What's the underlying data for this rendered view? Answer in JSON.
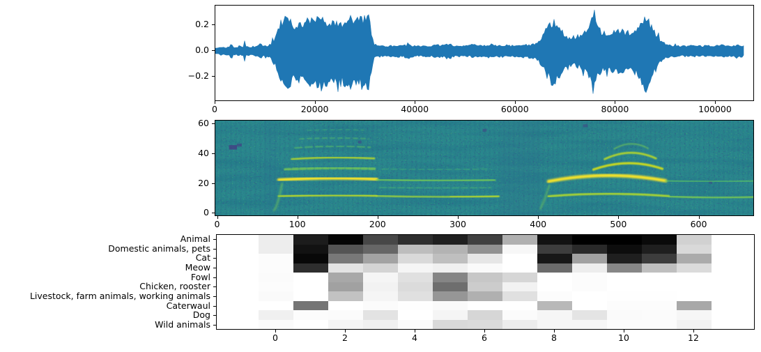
{
  "figure": {
    "background": "#ffffff",
    "text_color": "#000000",
    "spine_color": "#000000"
  },
  "chart_data": [
    {
      "id": "waveform",
      "type": "line",
      "title": "",
      "xlabel": "",
      "ylabel": "",
      "series_color": "#1f77b4",
      "xlim": [
        0,
        107800
      ],
      "ylim": [
        -0.39,
        0.35
      ],
      "xticks": [
        0,
        20000,
        40000,
        60000,
        80000,
        100000
      ],
      "xtick_labels": [
        "0",
        "20000",
        "40000",
        "60000",
        "80000",
        "100000"
      ],
      "yticks": [
        0.2,
        0.0,
        -0.2
      ],
      "ytick_labels": [
        "0.2",
        "0.0",
        "−0.2"
      ],
      "n_samples": 105700,
      "envelope": [
        [
          0,
          0.022
        ],
        [
          1500,
          0.03
        ],
        [
          2800,
          0.032
        ],
        [
          3200,
          0.075
        ],
        [
          3600,
          0.032
        ],
        [
          4800,
          0.036
        ],
        [
          5600,
          0.04
        ],
        [
          5850,
          0.1
        ],
        [
          6100,
          0.04
        ],
        [
          7000,
          0.036
        ],
        [
          8000,
          0.04
        ],
        [
          9300,
          0.055
        ],
        [
          9700,
          0.04
        ],
        [
          10500,
          0.046
        ],
        [
          11200,
          0.06
        ],
        [
          11500,
          0.12
        ],
        [
          11800,
          0.09
        ],
        [
          12400,
          0.17
        ],
        [
          13000,
          0.24
        ],
        [
          13800,
          0.275
        ],
        [
          14500,
          0.29
        ],
        [
          15200,
          0.26
        ],
        [
          16000,
          0.215
        ],
        [
          16800,
          0.235
        ],
        [
          17600,
          0.225
        ],
        [
          18400,
          0.245
        ],
        [
          19200,
          0.27
        ],
        [
          20000,
          0.3
        ],
        [
          20800,
          0.31
        ],
        [
          21600,
          0.285
        ],
        [
          22400,
          0.255
        ],
        [
          23200,
          0.26
        ],
        [
          24000,
          0.245
        ],
        [
          24800,
          0.265
        ],
        [
          25600,
          0.255
        ],
        [
          26400,
          0.27
        ],
        [
          27200,
          0.285
        ],
        [
          28000,
          0.265
        ],
        [
          28800,
          0.27
        ],
        [
          29600,
          0.29
        ],
        [
          30300,
          0.315
        ],
        [
          30800,
          0.29
        ],
        [
          31200,
          0.17
        ],
        [
          31600,
          0.065
        ],
        [
          32500,
          0.048
        ],
        [
          34000,
          0.042
        ],
        [
          35500,
          0.045
        ],
        [
          37000,
          0.048
        ],
        [
          38300,
          0.05
        ],
        [
          38550,
          0.09
        ],
        [
          38800,
          0.05
        ],
        [
          40000,
          0.045
        ],
        [
          41500,
          0.042
        ],
        [
          43000,
          0.045
        ],
        [
          44500,
          0.05
        ],
        [
          46000,
          0.052
        ],
        [
          47000,
          0.06
        ],
        [
          47600,
          0.048
        ],
        [
          49000,
          0.046
        ],
        [
          50500,
          0.044
        ],
        [
          52000,
          0.052
        ],
        [
          53500,
          0.048
        ],
        [
          55000,
          0.056
        ],
        [
          56500,
          0.046
        ],
        [
          58000,
          0.05
        ],
        [
          59500,
          0.046
        ],
        [
          61000,
          0.05
        ],
        [
          62500,
          0.054
        ],
        [
          63800,
          0.06
        ],
        [
          64800,
          0.09
        ],
        [
          65600,
          0.15
        ],
        [
          66400,
          0.21
        ],
        [
          67200,
          0.25
        ],
        [
          67700,
          0.26
        ],
        [
          68300,
          0.23
        ],
        [
          69000,
          0.19
        ],
        [
          69800,
          0.14
        ],
        [
          70600,
          0.115
        ],
        [
          71600,
          0.12
        ],
        [
          72600,
          0.13
        ],
        [
          73600,
          0.15
        ],
        [
          74400,
          0.18
        ],
        [
          75100,
          0.25
        ],
        [
          75500,
          0.31
        ],
        [
          76000,
          0.27
        ],
        [
          76600,
          0.19
        ],
        [
          77400,
          0.16
        ],
        [
          78200,
          0.155
        ],
        [
          79000,
          0.17
        ],
        [
          79800,
          0.16
        ],
        [
          80600,
          0.18
        ],
        [
          81400,
          0.17
        ],
        [
          82200,
          0.16
        ],
        [
          83000,
          0.167
        ],
        [
          83800,
          0.175
        ],
        [
          84600,
          0.2
        ],
        [
          85300,
          0.25
        ],
        [
          85900,
          0.31
        ],
        [
          86400,
          0.285
        ],
        [
          87000,
          0.24
        ],
        [
          87600,
          0.19
        ],
        [
          88300,
          0.13
        ],
        [
          89000,
          0.09
        ],
        [
          90000,
          0.058
        ],
        [
          91500,
          0.046
        ],
        [
          93000,
          0.042
        ],
        [
          95000,
          0.046
        ],
        [
          97000,
          0.043
        ],
        [
          99000,
          0.046
        ],
        [
          101000,
          0.05
        ],
        [
          103000,
          0.046
        ],
        [
          105000,
          0.05
        ],
        [
          105700,
          0.042
        ]
      ]
    },
    {
      "id": "spectrogram",
      "type": "heatmap",
      "colormap": "viridis",
      "xlim": [
        0,
        669
      ],
      "ylim": [
        -2.3,
        62.5
      ],
      "xticks": [
        0,
        100,
        200,
        300,
        400,
        500,
        600
      ],
      "xtick_labels": [
        "0",
        "100",
        "200",
        "300",
        "400",
        "500",
        "600"
      ],
      "yticks": [
        0,
        20,
        40,
        60
      ],
      "ytick_labels": [
        "0",
        "20",
        "40",
        "60"
      ],
      "background": "#2a878d",
      "bands": [
        {
          "x": [
            76,
            198
          ],
          "y": [
            22.5,
            23.8,
            23
          ],
          "c": "#fde725",
          "w": 4.6,
          "o": 1,
          "b": 2
        },
        {
          "x": [
            76,
            198
          ],
          "y": [
            11.5,
            12.2,
            11.8
          ],
          "c": "#c2df23",
          "w": 3,
          "o": 0.9,
          "b": 1
        },
        {
          "x": [
            84,
            196
          ],
          "y": [
            29.5,
            30.6,
            30
          ],
          "c": "#86d549",
          "w": 4,
          "o": 0.7,
          "b": 1,
          "d": "7 4"
        },
        {
          "x": [
            92,
            195
          ],
          "y": [
            36.5,
            37.6,
            37
          ],
          "c": "#c2df23",
          "w": 2.6,
          "o": 0.85,
          "b": 1
        },
        {
          "x": [
            96,
            190
          ],
          "y": [
            44,
            45.2,
            44.5
          ],
          "c": "#5ec962",
          "w": 2.2,
          "o": 0.6,
          "b": 1,
          "d": "10 5"
        },
        {
          "x": [
            102,
            188
          ],
          "y": [
            50,
            50.8,
            50.2
          ],
          "c": "#5ec962",
          "w": 2,
          "o": 0.5,
          "b": 1,
          "d": "6 5"
        },
        {
          "x": [
            112,
            182
          ],
          "y": [
            55.8,
            56.5,
            56
          ],
          "c": "#4ac16d",
          "w": 1.8,
          "o": 0.4,
          "b": 1,
          "d": "5 6"
        },
        {
          "x": [
            198,
            345
          ],
          "y": [
            22.8,
            22,
            22.5
          ],
          "c": "#7ad151",
          "w": 3,
          "o": 0.75,
          "b": 1
        },
        {
          "x": [
            198,
            350
          ],
          "y": [
            11.8,
            11,
            11.5
          ],
          "c": "#a8db34",
          "w": 2.6,
          "o": 0.85,
          "b": 1
        },
        {
          "x": [
            290,
            350
          ],
          "y": [
            11.4,
            11.2,
            11.4
          ],
          "c": "#d8e219",
          "w": 2.6,
          "o": 0.8,
          "b": 1
        },
        {
          "x": [
            202,
            340
          ],
          "y": [
            17.5,
            17,
            17.4
          ],
          "c": "#52c569",
          "w": 2.2,
          "o": 0.45,
          "b": 1,
          "d": "9 4"
        },
        {
          "x": [
            205,
            335
          ],
          "y": [
            30,
            29.4,
            30
          ],
          "c": "#4ac16d",
          "w": 2,
          "o": 0.4,
          "b": 1,
          "d": "8 5"
        },
        {
          "x": [
            412,
            558
          ],
          "y": [
            21.5,
            25.5,
            22
          ],
          "c": "#fde725",
          "w": 4.6,
          "o": 1,
          "b": 2
        },
        {
          "x": [
            412,
            562
          ],
          "y": [
            11.5,
            13.2,
            11.6
          ],
          "c": "#b5de2b",
          "w": 3,
          "o": 0.9,
          "b": 1
        },
        {
          "x": [
            468,
            554
          ],
          "y": [
            29.5,
            33.8,
            30
          ],
          "c": "#d8e219",
          "w": 3.2,
          "o": 0.9,
          "b": 1
        },
        {
          "x": [
            482,
            546
          ],
          "y": [
            36.5,
            40.8,
            37
          ],
          "c": "#c2df23",
          "w": 2.8,
          "o": 0.85,
          "b": 1
        },
        {
          "x": [
            494,
            536
          ],
          "y": [
            43.5,
            46.8,
            43.8
          ],
          "c": "#7ad151",
          "w": 2.2,
          "o": 0.55,
          "b": 1
        },
        {
          "x": [
            558,
            669
          ],
          "y": [
            22,
            21.4,
            21.8
          ],
          "c": "#5ec962",
          "w": 2.6,
          "o": 0.65,
          "b": 1
        },
        {
          "x": [
            562,
            669
          ],
          "y": [
            11.4,
            10.6,
            11
          ],
          "c": "#86d549",
          "w": 2.6,
          "o": 0.8,
          "b": 1
        },
        {
          "x": [
            70,
            80
          ],
          "y": [
            2,
            8,
            20
          ],
          "c": "#7ad151",
          "w": 2.4,
          "o": 0.6,
          "b": 2
        },
        {
          "x": [
            402,
            413
          ],
          "y": [
            3,
            10,
            19
          ],
          "c": "#7ad151",
          "w": 2.4,
          "o": 0.55,
          "b": 2
        }
      ],
      "streaks": [
        {
          "x": 193,
          "y": [
            0,
            60
          ],
          "c": "#8ed645",
          "w": 1.4,
          "o": 0.3
        },
        {
          "x": 510,
          "y": [
            12,
            62
          ],
          "c": "#a8db34",
          "w": 1.6,
          "o": 0.3
        },
        {
          "x": 477,
          "y": [
            26,
            50
          ],
          "c": "#6ece58",
          "w": 1.2,
          "o": 0.3
        },
        {
          "x": 88,
          "y": [
            0,
            20
          ],
          "c": "#6ece58",
          "w": 1.3,
          "o": 0.35
        },
        {
          "x": 411,
          "y": [
            0,
            20
          ],
          "c": "#6ece58",
          "w": 1.3,
          "o": 0.3
        }
      ],
      "patches": [
        {
          "r": [
            14,
            43,
            10,
            3
          ],
          "c": "#443983",
          "o": 0.75
        },
        {
          "r": [
            24,
            45,
            6,
            2
          ],
          "c": "#443983",
          "o": 0.6
        },
        {
          "r": [
            175,
            47,
            4,
            2
          ],
          "c": "#443983",
          "o": 0.5
        },
        {
          "r": [
            330,
            55,
            5,
            2
          ],
          "c": "#443983",
          "o": 0.5
        },
        {
          "r": [
            455,
            58,
            6,
            2
          ],
          "c": "#443983",
          "o": 0.5
        },
        {
          "r": [
            612,
            20,
            4,
            2
          ],
          "c": "#443983",
          "o": 0.45
        },
        {
          "r": [
            352,
            -3,
            50,
            68
          ],
          "c": "#2c728e",
          "o": 0.22
        },
        {
          "r": [
            58,
            -3,
            17,
            68
          ],
          "c": "#2c728e",
          "o": 0.18
        }
      ]
    },
    {
      "id": "class_probability_heatmap",
      "type": "heatmap",
      "colormap": "gray_r",
      "rows": [
        "Animal",
        "Domestic animals, pets",
        "Cat",
        "Meow",
        "Fowl",
        "Chicken, rooster",
        "Livestock, farm animals, working animals",
        "Caterwaul",
        "Dog",
        "Wild animals"
      ],
      "columns": [
        0,
        1,
        2,
        3,
        4,
        5,
        6,
        7,
        8,
        9,
        10,
        11,
        12
      ],
      "xticks": [
        0,
        2,
        4,
        6,
        8,
        10,
        12
      ],
      "xtick_labels": [
        "0",
        "2",
        "4",
        "6",
        "8",
        "10",
        "12"
      ],
      "values": [
        [
          0.07,
          0.89,
          0.98,
          0.72,
          0.82,
          0.88,
          0.75,
          0.31,
          0.93,
          1.0,
          1.0,
          0.96,
          0.18
        ],
        [
          0.07,
          0.93,
          0.67,
          0.6,
          0.26,
          0.3,
          0.43,
          0.03,
          0.76,
          0.84,
          0.95,
          0.88,
          0.15
        ],
        [
          0.01,
          0.97,
          0.53,
          0.36,
          0.15,
          0.25,
          0.1,
          0.0,
          0.91,
          0.37,
          0.88,
          0.76,
          0.33
        ],
        [
          0.01,
          0.82,
          0.11,
          0.17,
          0.04,
          0.06,
          0.02,
          0.0,
          0.58,
          0.07,
          0.47,
          0.25,
          0.14
        ],
        [
          0.015,
          0.0,
          0.34,
          0.04,
          0.12,
          0.48,
          0.22,
          0.16,
          0.0,
          0.01,
          0.0,
          0.0,
          0.0
        ],
        [
          0.01,
          0.0,
          0.37,
          0.05,
          0.14,
          0.57,
          0.2,
          0.05,
          0.0,
          0.01,
          0.0,
          0.0,
          0.0
        ],
        [
          0.02,
          0.0,
          0.24,
          0.04,
          0.12,
          0.41,
          0.31,
          0.12,
          0.01,
          0.0,
          0.005,
          0.005,
          0.0
        ],
        [
          0.0,
          0.54,
          0.0,
          0.015,
          0.005,
          0.02,
          0.0,
          0.0,
          0.28,
          0.0,
          0.01,
          0.01,
          0.34
        ],
        [
          0.06,
          0.01,
          0.015,
          0.11,
          0.0,
          0.04,
          0.16,
          0.015,
          0.035,
          0.105,
          0.02,
          0.016,
          0.035
        ],
        [
          0.015,
          0.0,
          0.04,
          0.06,
          0.015,
          0.15,
          0.14,
          0.075,
          0.035,
          0.035,
          0.01,
          0.01,
          0.05
        ]
      ]
    }
  ]
}
